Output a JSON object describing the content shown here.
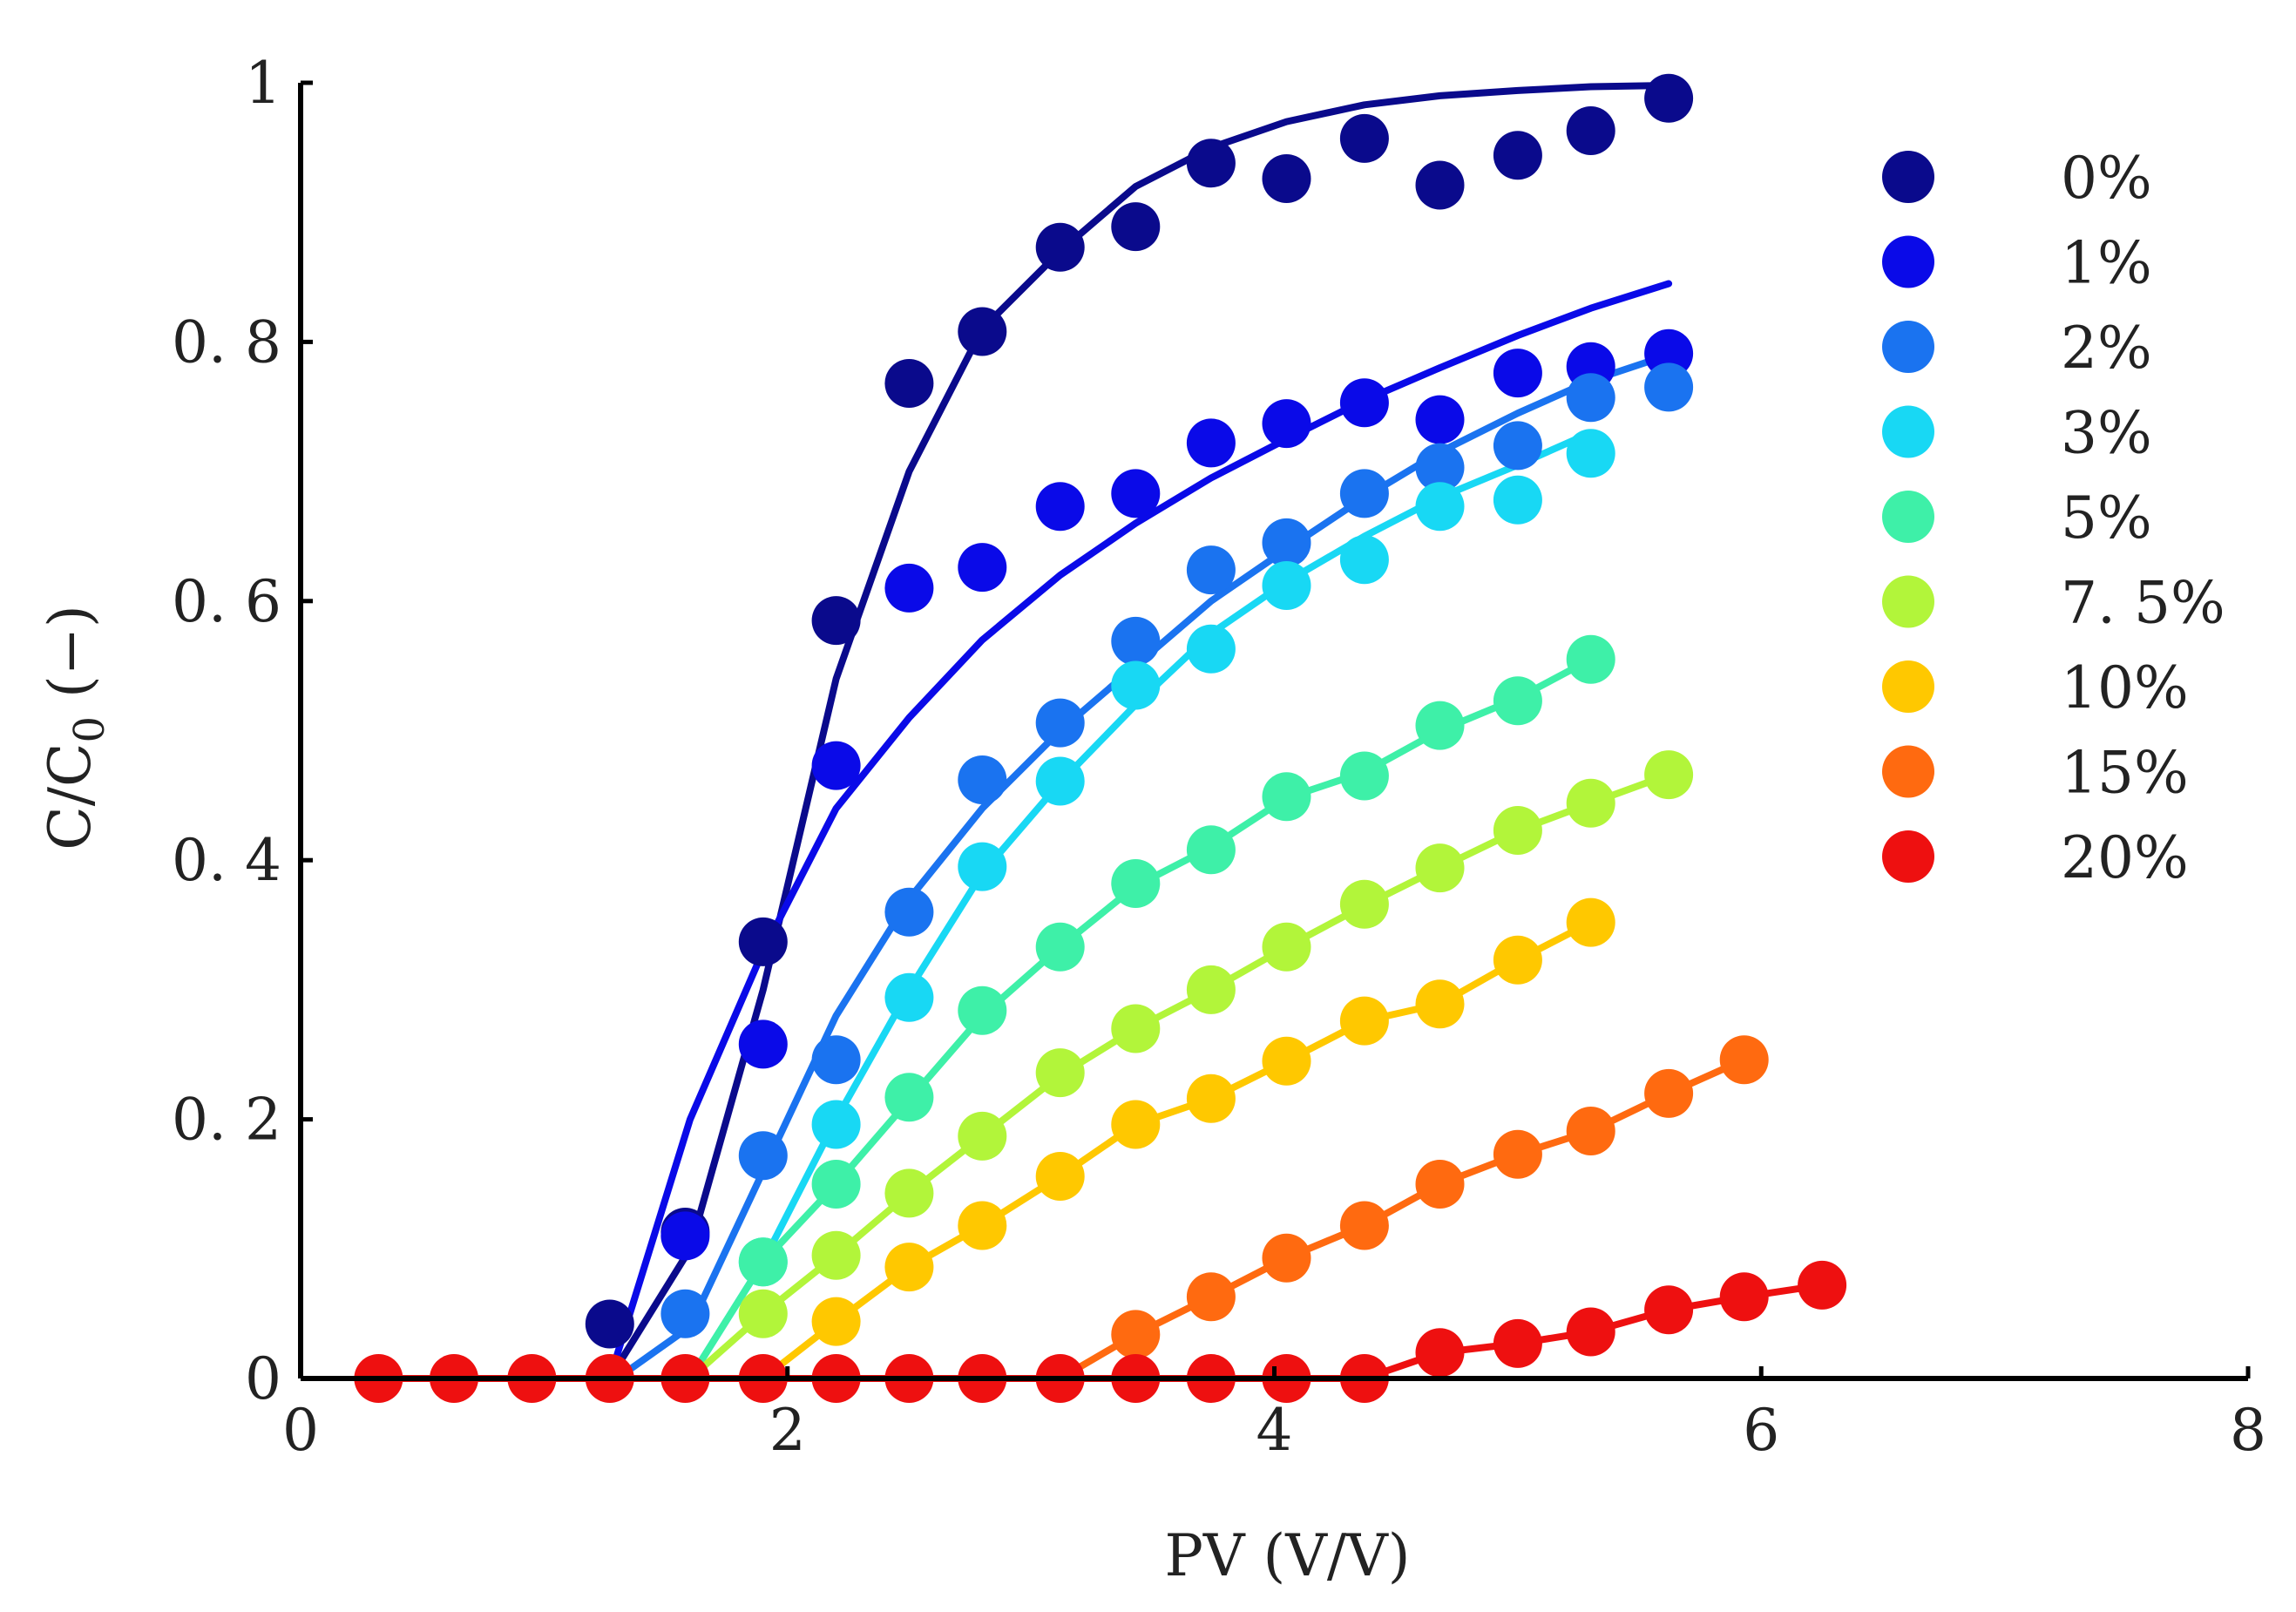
{
  "chart_data": {
    "type": "scatter",
    "title": "",
    "xlabel": "PV (V/V)",
    "ylabel": "C/C",
    "ylabel_subscript": "0",
    "ylabel_suffix": "(−)",
    "xlim": [
      0,
      8
    ],
    "ylim": [
      0,
      1
    ],
    "x_ticks": [
      0,
      2,
      4,
      6,
      8
    ],
    "y_ticks": [
      0,
      0.2,
      0.4,
      0.6,
      0.8,
      1
    ],
    "x_tick_labels": [
      "0",
      "2",
      "4",
      "6",
      "8"
    ],
    "y_tick_labels": [
      "0",
      "0. 2",
      "0. 4",
      "0. 6",
      "0. 8",
      "1"
    ],
    "grid": false,
    "legend_position": "top-right",
    "series": [
      {
        "name": "0%",
        "color": "#0a0a8c",
        "points": [
          [
            1.27,
            0.042
          ],
          [
            1.58,
            0.113
          ],
          [
            1.9,
            0.337
          ],
          [
            2.2,
            0.585
          ],
          [
            2.5,
            0.768
          ],
          [
            2.8,
            0.808
          ],
          [
            3.12,
            0.873
          ],
          [
            3.43,
            0.889
          ],
          [
            3.74,
            0.938
          ],
          [
            4.05,
            0.926
          ],
          [
            4.37,
            0.957
          ],
          [
            4.68,
            0.921
          ],
          [
            5.0,
            0.944
          ],
          [
            5.3,
            0.963
          ],
          [
            5.62,
            0.988
          ]
        ],
        "fit": [
          [
            1.27,
            0.0
          ],
          [
            1.6,
            0.1
          ],
          [
            1.9,
            0.3
          ],
          [
            2.2,
            0.54
          ],
          [
            2.5,
            0.7
          ],
          [
            2.8,
            0.81
          ],
          [
            3.12,
            0.87
          ],
          [
            3.43,
            0.92
          ],
          [
            3.74,
            0.95
          ],
          [
            4.05,
            0.97
          ],
          [
            4.37,
            0.983
          ],
          [
            4.68,
            0.99
          ],
          [
            5.0,
            0.994
          ],
          [
            5.3,
            0.997
          ],
          [
            5.62,
            0.998
          ]
        ]
      },
      {
        "name": "1%",
        "color": "#0a0ae8",
        "points": [
          [
            1.58,
            0.11
          ],
          [
            1.9,
            0.258
          ],
          [
            2.2,
            0.473
          ],
          [
            2.5,
            0.61
          ],
          [
            2.8,
            0.626
          ],
          [
            3.12,
            0.673
          ],
          [
            3.43,
            0.683
          ],
          [
            3.74,
            0.722
          ],
          [
            4.05,
            0.737
          ],
          [
            4.37,
            0.753
          ],
          [
            4.68,
            0.74
          ],
          [
            5.0,
            0.776
          ],
          [
            5.3,
            0.781
          ],
          [
            5.62,
            0.791
          ]
        ],
        "fit": [
          [
            1.27,
            0.0
          ],
          [
            1.6,
            0.2
          ],
          [
            1.9,
            0.33
          ],
          [
            2.2,
            0.44
          ],
          [
            2.5,
            0.51
          ],
          [
            2.8,
            0.57
          ],
          [
            3.12,
            0.62
          ],
          [
            3.43,
            0.66
          ],
          [
            3.74,
            0.695
          ],
          [
            4.05,
            0.725
          ],
          [
            4.37,
            0.755
          ],
          [
            4.68,
            0.78
          ],
          [
            5.0,
            0.805
          ],
          [
            5.3,
            0.826
          ],
          [
            5.62,
            0.845
          ]
        ]
      },
      {
        "name": "2%",
        "color": "#1a73f0",
        "points": [
          [
            1.58,
            0.05
          ],
          [
            1.9,
            0.172
          ],
          [
            2.2,
            0.246
          ],
          [
            2.5,
            0.36
          ],
          [
            2.8,
            0.462
          ],
          [
            3.12,
            0.506
          ],
          [
            3.43,
            0.569
          ],
          [
            3.74,
            0.624
          ],
          [
            4.05,
            0.645
          ],
          [
            4.37,
            0.683
          ],
          [
            4.68,
            0.703
          ],
          [
            5.0,
            0.72
          ],
          [
            5.3,
            0.757
          ],
          [
            5.62,
            0.765
          ]
        ],
        "fit": [
          [
            1.3,
            0.0
          ],
          [
            1.6,
            0.04
          ],
          [
            1.9,
            0.16
          ],
          [
            2.2,
            0.28
          ],
          [
            2.5,
            0.37
          ],
          [
            2.8,
            0.44
          ],
          [
            3.12,
            0.5
          ],
          [
            3.43,
            0.55
          ],
          [
            3.74,
            0.6
          ],
          [
            4.05,
            0.64
          ],
          [
            4.37,
            0.68
          ],
          [
            4.68,
            0.715
          ],
          [
            5.0,
            0.745
          ],
          [
            5.3,
            0.77
          ],
          [
            5.62,
            0.79
          ]
        ]
      },
      {
        "name": "3%",
        "color": "#18d8f4",
        "points": [
          [
            1.9,
            0.09
          ],
          [
            2.2,
            0.196
          ],
          [
            2.5,
            0.294
          ],
          [
            2.8,
            0.395
          ],
          [
            3.12,
            0.461
          ],
          [
            3.43,
            0.535
          ],
          [
            3.74,
            0.563
          ],
          [
            4.05,
            0.612
          ],
          [
            4.37,
            0.632
          ],
          [
            4.68,
            0.673
          ],
          [
            5.0,
            0.678
          ],
          [
            5.3,
            0.714
          ]
        ],
        "fit": [
          [
            1.6,
            0.0
          ],
          [
            1.9,
            0.09
          ],
          [
            2.2,
            0.2
          ],
          [
            2.5,
            0.3
          ],
          [
            2.8,
            0.39
          ],
          [
            3.12,
            0.46
          ],
          [
            3.43,
            0.52
          ],
          [
            3.74,
            0.575
          ],
          [
            4.05,
            0.615
          ],
          [
            4.37,
            0.65
          ],
          [
            4.68,
            0.68
          ],
          [
            5.0,
            0.705
          ],
          [
            5.3,
            0.73
          ]
        ]
      },
      {
        "name": "5%",
        "color": "#3ef0a8",
        "points": [
          [
            1.9,
            0.09
          ],
          [
            2.2,
            0.15
          ],
          [
            2.5,
            0.217
          ],
          [
            2.8,
            0.284
          ],
          [
            3.12,
            0.333
          ],
          [
            3.43,
            0.382
          ],
          [
            3.74,
            0.408
          ],
          [
            4.05,
            0.449
          ],
          [
            4.37,
            0.465
          ],
          [
            4.68,
            0.504
          ],
          [
            5.0,
            0.523
          ],
          [
            5.3,
            0.555
          ]
        ],
        "fit": [
          [
            1.6,
            0.0
          ],
          [
            1.9,
            0.09
          ],
          [
            2.2,
            0.15
          ],
          [
            2.5,
            0.215
          ],
          [
            2.8,
            0.28
          ],
          [
            3.12,
            0.333
          ],
          [
            3.43,
            0.38
          ],
          [
            3.74,
            0.41
          ],
          [
            4.05,
            0.448
          ],
          [
            4.37,
            0.468
          ],
          [
            4.68,
            0.5
          ],
          [
            5.0,
            0.525
          ],
          [
            5.3,
            0.555
          ]
        ]
      },
      {
        "name": "7. 5%",
        "color": "#b2f53a",
        "points": [
          [
            1.9,
            0.05
          ],
          [
            2.2,
            0.095
          ],
          [
            2.5,
            0.143
          ],
          [
            2.8,
            0.187
          ],
          [
            3.12,
            0.236
          ],
          [
            3.43,
            0.27
          ],
          [
            3.74,
            0.3
          ],
          [
            4.05,
            0.333
          ],
          [
            4.37,
            0.366
          ],
          [
            4.68,
            0.394
          ],
          [
            5.0,
            0.423
          ],
          [
            5.3,
            0.444
          ],
          [
            5.62,
            0.466
          ]
        ],
        "fit": [
          [
            1.6,
            0.0
          ],
          [
            1.9,
            0.05
          ],
          [
            2.2,
            0.095
          ],
          [
            2.5,
            0.143
          ],
          [
            2.8,
            0.187
          ],
          [
            3.12,
            0.234
          ],
          [
            3.43,
            0.27
          ],
          [
            3.74,
            0.3
          ],
          [
            4.05,
            0.333
          ],
          [
            4.37,
            0.365
          ],
          [
            4.68,
            0.394
          ],
          [
            5.0,
            0.423
          ],
          [
            5.3,
            0.444
          ],
          [
            5.62,
            0.466
          ]
        ]
      },
      {
        "name": "10%",
        "color": "#ffc800",
        "points": [
          [
            2.2,
            0.044
          ],
          [
            2.5,
            0.086
          ],
          [
            2.8,
            0.118
          ],
          [
            3.12,
            0.156
          ],
          [
            3.43,
            0.196
          ],
          [
            3.74,
            0.216
          ],
          [
            4.05,
            0.245
          ],
          [
            4.37,
            0.276
          ],
          [
            4.68,
            0.289
          ],
          [
            5.0,
            0.323
          ],
          [
            5.3,
            0.352
          ]
        ],
        "fit": [
          [
            1.9,
            0.0
          ],
          [
            2.2,
            0.044
          ],
          [
            2.5,
            0.086
          ],
          [
            2.8,
            0.118
          ],
          [
            3.12,
            0.156
          ],
          [
            3.43,
            0.196
          ],
          [
            3.74,
            0.216
          ],
          [
            4.05,
            0.245
          ],
          [
            4.37,
            0.276
          ],
          [
            4.68,
            0.289
          ],
          [
            5.0,
            0.323
          ],
          [
            5.3,
            0.352
          ]
        ]
      },
      {
        "name": "15%",
        "color": "#ff6a10",
        "points": [
          [
            3.43,
            0.034
          ],
          [
            3.74,
            0.063
          ],
          [
            4.05,
            0.093
          ],
          [
            4.37,
            0.118
          ],
          [
            4.68,
            0.15
          ],
          [
            5.0,
            0.173
          ],
          [
            5.3,
            0.191
          ],
          [
            5.62,
            0.22
          ],
          [
            5.93,
            0.246
          ]
        ],
        "fit": [
          [
            3.12,
            0.0
          ],
          [
            3.43,
            0.034
          ],
          [
            3.74,
            0.063
          ],
          [
            4.05,
            0.093
          ],
          [
            4.37,
            0.118
          ],
          [
            4.68,
            0.15
          ],
          [
            5.0,
            0.173
          ],
          [
            5.3,
            0.191
          ],
          [
            5.62,
            0.22
          ],
          [
            5.93,
            0.246
          ]
        ]
      },
      {
        "name": "20%",
        "color": "#ee1010",
        "points": [
          [
            0.32,
            0.0
          ],
          [
            0.63,
            0.0
          ],
          [
            0.95,
            0.0
          ],
          [
            1.27,
            0.0
          ],
          [
            1.58,
            0.0
          ],
          [
            1.9,
            0.0
          ],
          [
            2.2,
            0.0
          ],
          [
            2.5,
            0.0
          ],
          [
            2.8,
            0.0
          ],
          [
            3.12,
            0.0
          ],
          [
            3.43,
            0.0
          ],
          [
            3.74,
            0.0
          ],
          [
            4.05,
            0.0
          ],
          [
            4.37,
            0.0
          ],
          [
            4.68,
            0.02
          ],
          [
            5.0,
            0.027
          ],
          [
            5.3,
            0.036
          ],
          [
            5.62,
            0.053
          ],
          [
            5.93,
            0.063
          ],
          [
            6.25,
            0.072
          ]
        ],
        "fit": [
          [
            0.32,
            0.0
          ],
          [
            4.37,
            0.0
          ],
          [
            4.68,
            0.02
          ],
          [
            5.0,
            0.027
          ],
          [
            5.3,
            0.036
          ],
          [
            5.62,
            0.053
          ],
          [
            5.93,
            0.063
          ],
          [
            6.25,
            0.072
          ]
        ]
      }
    ]
  }
}
